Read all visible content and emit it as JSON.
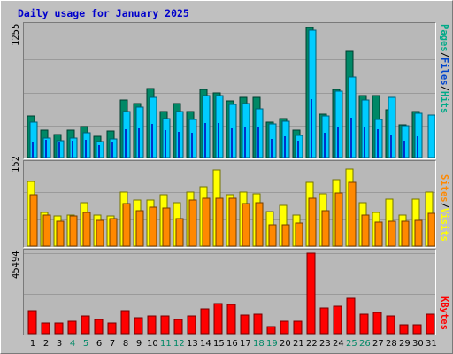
{
  "title": "Daily usage for January 2025",
  "colors": {
    "hits": "#00ccff",
    "files": "#0033cc",
    "pages": "#008866",
    "visits": "#ffff00",
    "sites": "#ff8800",
    "kbytes": "#ff0000",
    "weekend_label": "#008866",
    "weekday_label": "#000000"
  },
  "chart_data": [
    {
      "type": "bar",
      "panel": "top",
      "ymax_label": "1255",
      "ymax": 1255,
      "legend_right": [
        "Pages",
        "/",
        "Files",
        "/",
        "Hits"
      ],
      "legend_colors": [
        "#00aa88",
        "#000000",
        "#0044cc",
        "#000000",
        "#00aa88"
      ],
      "categories": [
        "1",
        "2",
        "3",
        "4",
        "5",
        "6",
        "7",
        "8",
        "9",
        "10",
        "11",
        "12",
        "13",
        "14",
        "15",
        "16",
        "17",
        "18",
        "19",
        "20",
        "21",
        "22",
        "23",
        "24",
        "25",
        "26",
        "27",
        "28",
        "29",
        "30",
        "31"
      ],
      "series": [
        {
          "name": "Pages",
          "values": [
            395,
            265,
            220,
            260,
            295,
            200,
            255,
            555,
            520,
            660,
            445,
            520,
            440,
            655,
            620,
            545,
            580,
            575,
            335,
            375,
            265,
            1245,
            415,
            650,
            1020,
            595,
            595,
            460,
            310,
            440,
            0
          ]
        },
        {
          "name": "Files",
          "values": [
            150,
            170,
            140,
            160,
            170,
            120,
            145,
            270,
            280,
            320,
            260,
            250,
            240,
            330,
            330,
            280,
            300,
            290,
            180,
            200,
            160,
            560,
            240,
            300,
            380,
            290,
            270,
            220,
            160,
            200,
            0
          ]
        },
        {
          "name": "Hits",
          "values": [
            340,
            190,
            165,
            190,
            240,
            150,
            175,
            445,
            485,
            575,
            375,
            445,
            365,
            595,
            590,
            505,
            515,
            470,
            325,
            350,
            215,
            1225,
            395,
            640,
            770,
            550,
            365,
            575,
            305,
            420,
            405
          ]
        }
      ]
    },
    {
      "type": "bar",
      "panel": "middle",
      "ymax_label": "152",
      "ymax": 152,
      "legend_right": [
        "Sites",
        "/",
        "Visits"
      ],
      "legend_colors": [
        "#ff8800",
        "#000000",
        "#ffff00"
      ],
      "categories": [
        "1",
        "2",
        "3",
        "4",
        "5",
        "6",
        "7",
        "8",
        "9",
        "10",
        "11",
        "12",
        "13",
        "14",
        "15",
        "16",
        "17",
        "18",
        "19",
        "20",
        "21",
        "22",
        "23",
        "24",
        "25",
        "26",
        "27",
        "28",
        "29",
        "30",
        "31"
      ],
      "series": [
        {
          "name": "Visits",
          "values": [
            120,
            62,
            56,
            58,
            80,
            58,
            55,
            100,
            85,
            85,
            95,
            80,
            100,
            110,
            140,
            95,
            100,
            96,
            64,
            75,
            58,
            118,
            96,
            122,
            143,
            80,
            62,
            86,
            58,
            86,
            100
          ]
        },
        {
          "name": "Sites",
          "values": [
            95,
            58,
            45,
            55,
            62,
            48,
            50,
            78,
            66,
            72,
            70,
            50,
            85,
            88,
            88,
            88,
            78,
            80,
            40,
            40,
            42,
            88,
            66,
            98,
            118,
            58,
            44,
            46,
            46,
            48,
            60
          ]
        }
      ]
    },
    {
      "type": "bar",
      "panel": "bottom",
      "ymax_label": "45494",
      "ymax": 45494,
      "legend_right": [
        "KBytes"
      ],
      "legend_colors": [
        "#ff0000"
      ],
      "categories": [
        "1",
        "2",
        "3",
        "4",
        "5",
        "6",
        "7",
        "8",
        "9",
        "10",
        "11",
        "12",
        "13",
        "14",
        "15",
        "16",
        "17",
        "18",
        "19",
        "20",
        "21",
        "22",
        "23",
        "24",
        "25",
        "26",
        "27",
        "28",
        "29",
        "30",
        "31"
      ],
      "series": [
        {
          "name": "KBytes",
          "values": [
            12800,
            6000,
            6000,
            6800,
            9800,
            7800,
            6000,
            12800,
            9000,
            9800,
            9800,
            7800,
            9800,
            14000,
            16800,
            16300,
            10700,
            11200,
            3900,
            7000,
            6900,
            45494,
            14300,
            15300,
            19900,
            11200,
            12200,
            9900,
            4800,
            4800,
            11200
          ]
        }
      ]
    }
  ],
  "day_labels": [
    "1",
    "2",
    "3",
    "4",
    "5",
    "6",
    "7",
    "8",
    "9",
    "10",
    "11",
    "12",
    "13",
    "14",
    "15",
    "16",
    "17",
    "18",
    "19",
    "20",
    "21",
    "22",
    "23",
    "24",
    "25",
    "26",
    "27",
    "28",
    "29",
    "30",
    "31"
  ],
  "weekend_days": [
    "4",
    "5",
    "11",
    "12",
    "18",
    "19",
    "25",
    "26"
  ]
}
